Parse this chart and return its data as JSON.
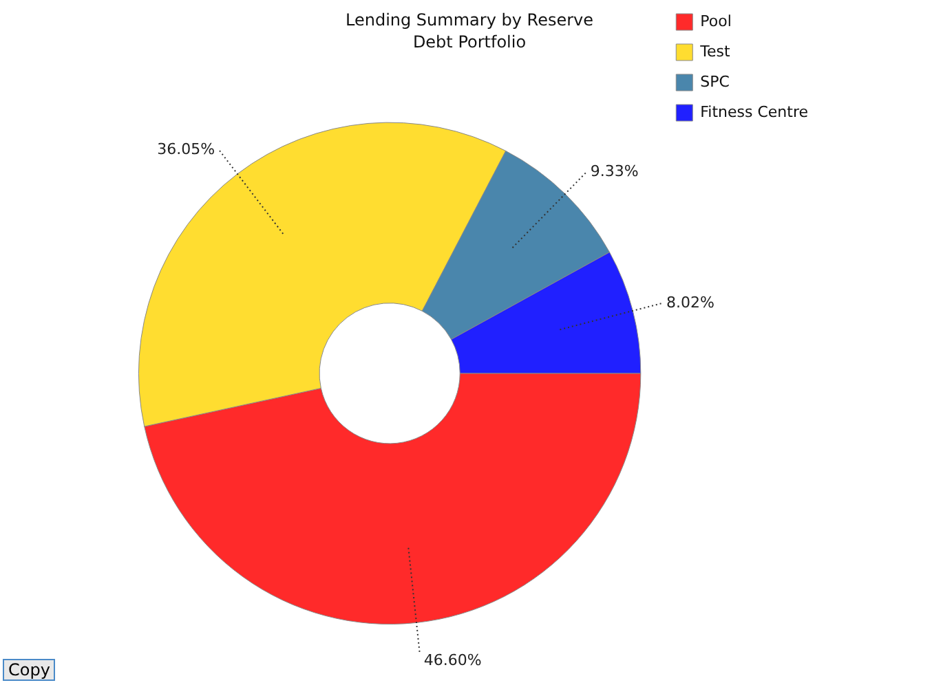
{
  "chart_data": {
    "type": "donut",
    "title": "Lending Summary by Reserve",
    "subtitle": "Debt Portfolio",
    "categories": [
      "Pool",
      "Test",
      "SPC",
      "Fitness Centre"
    ],
    "values": [
      46.6,
      36.05,
      9.33,
      8.02
    ],
    "colors": [
      "#ff2a2a",
      "#ffdd30",
      "#4a86ac",
      "#2020ff"
    ],
    "value_labels": [
      "46.60%",
      "36.05%",
      "9.33%",
      "8.02%"
    ],
    "legend": "top right",
    "annotations": [
      "Copy"
    ]
  }
}
